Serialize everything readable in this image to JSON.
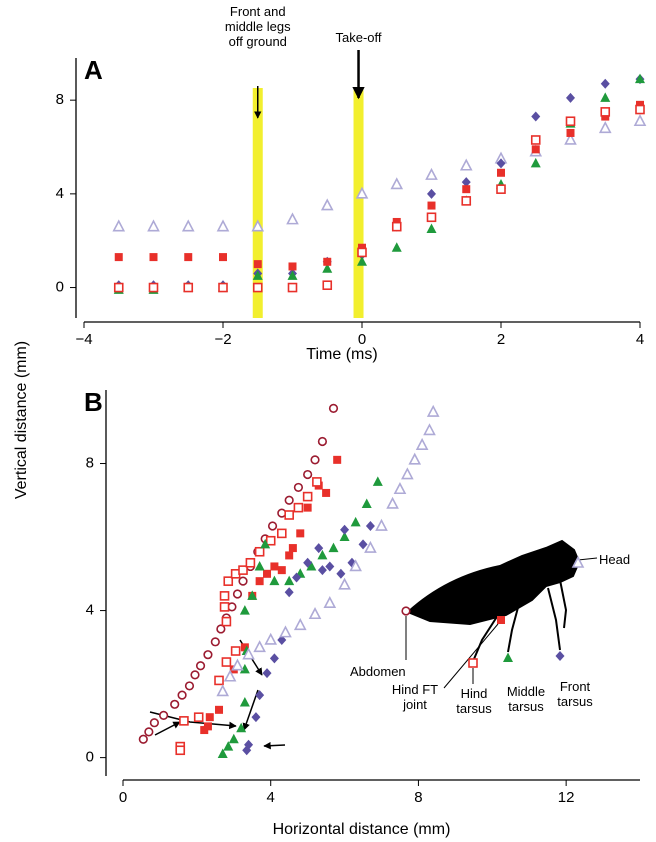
{
  "chart_data": [
    {
      "type": "scatter",
      "panel": "A",
      "xlabel": "Time (ms)",
      "ylabel": "Vertical distance (mm)",
      "xlim": [
        -4,
        4
      ],
      "ylim": [
        -1.3,
        9.8
      ],
      "xticks": [
        {
          "value": -4,
          "label": "−4"
        },
        {
          "value": -2,
          "label": "−2"
        },
        0,
        2,
        4
      ],
      "yticks": [
        0,
        4,
        8
      ],
      "annotations": [
        {
          "x": -1.5,
          "label": "Front and middle legs off ground"
        },
        {
          "x": -0.05,
          "label": "Take-off"
        }
      ],
      "band_color": "#f2ef2e",
      "x": [
        -3.5,
        -3,
        -2.5,
        -2,
        -1.5,
        -1,
        -0.5,
        0,
        0.5,
        1,
        1.5,
        2,
        2.5,
        3,
        3.5,
        4
      ],
      "series": [
        {
          "marker": "triangle-open",
          "color": "#aeaad6",
          "values": [
            2.6,
            2.6,
            2.6,
            2.6,
            2.6,
            2.9,
            3.5,
            4.0,
            4.4,
            4.8,
            5.2,
            5.5,
            5.8,
            6.3,
            6.8,
            7.1
          ]
        },
        {
          "marker": "diamond",
          "color": "#5a4fa2",
          "values": [
            0.1,
            0.1,
            0.1,
            0.1,
            0.6,
            0.6,
            1.1,
            1.4,
            2.6,
            4.0,
            4.5,
            5.3,
            7.3,
            8.1,
            8.7,
            8.9
          ]
        },
        {
          "marker": "triangle",
          "color": "#1f9a3c",
          "values": [
            -0.1,
            -0.1,
            0,
            0,
            0.5,
            0.5,
            0.8,
            1.1,
            1.7,
            2.5,
            3.7,
            4.4,
            5.3,
            7.0,
            8.1,
            8.9
          ]
        },
        {
          "marker": "square",
          "color": "#e8302a",
          "values": [
            1.3,
            1.3,
            1.3,
            1.3,
            1.0,
            0.9,
            1.1,
            1.7,
            2.8,
            3.5,
            4.2,
            4.9,
            5.9,
            6.6,
            7.3,
            7.8
          ]
        },
        {
          "marker": "square-open",
          "color": "#e8302a",
          "values": [
            0,
            0,
            0,
            0,
            0,
            0,
            0.1,
            1.5,
            2.6,
            3.0,
            3.7,
            4.2,
            6.3,
            7.1,
            7.5,
            7.6
          ]
        }
      ]
    },
    {
      "type": "scatter",
      "panel": "B",
      "xlabel": "Horizontal distance (mm)",
      "xlim": [
        0,
        14
      ],
      "ylim": [
        -0.5,
        10
      ],
      "xticks": [
        0,
        4,
        8,
        12
      ],
      "yticks": [
        0,
        4,
        8
      ],
      "series": [
        {
          "name": "Abdomen",
          "marker": "circle-open",
          "color": "#9b1b30",
          "x": [
            0.55,
            0.7,
            0.85,
            1.1,
            1.4,
            1.6,
            1.8,
            1.95,
            2.1,
            2.3,
            2.5,
            2.65,
            2.8,
            2.95,
            3.1,
            3.25,
            3.45,
            3.65,
            3.85,
            4.05,
            4.3,
            4.5,
            4.75,
            5.0,
            5.2,
            5.4,
            5.7
          ],
          "values": [
            0.5,
            0.7,
            0.95,
            1.15,
            1.45,
            1.7,
            1.95,
            2.25,
            2.5,
            2.8,
            3.15,
            3.5,
            3.8,
            4.1,
            4.45,
            4.8,
            5.2,
            5.6,
            5.95,
            6.3,
            6.65,
            7.0,
            7.35,
            7.7,
            8.1,
            8.6,
            9.5
          ]
        },
        {
          "name": "Hind FT joint",
          "marker": "square",
          "color": "#e8302a",
          "x": [
            2.2,
            2.3,
            2.35,
            2.6,
            3.0,
            3.3,
            3.5,
            3.7,
            3.9,
            4.1,
            4.3,
            4.5,
            4.6,
            4.8,
            5.0,
            5.3,
            5.5,
            5.8
          ],
          "values": [
            0.75,
            0.85,
            1.1,
            1.3,
            2.4,
            3.0,
            4.4,
            4.8,
            5.0,
            5.2,
            5.1,
            5.5,
            5.7,
            6.1,
            6.8,
            7.4,
            7.2,
            8.1
          ]
        },
        {
          "name": "Hind tarsus",
          "marker": "square-open",
          "color": "#e8302a",
          "x": [
            1.55,
            1.55,
            1.65,
            2.05,
            2.6,
            2.8,
            3.05,
            2.8,
            2.75,
            2.75,
            2.85,
            3.05,
            3.25,
            3.45,
            3.7,
            4.0,
            4.3,
            4.5,
            4.75,
            5.0,
            5.25
          ],
          "values": [
            0.3,
            0.2,
            1.0,
            1.1,
            2.1,
            2.6,
            2.9,
            3.7,
            4.1,
            4.4,
            4.8,
            5.0,
            5.1,
            5.3,
            5.6,
            5.9,
            6.1,
            6.6,
            6.8,
            7.1,
            7.5
          ]
        },
        {
          "name": "Middle tarsus",
          "marker": "triangle",
          "color": "#1f9a3c",
          "x": [
            2.7,
            2.85,
            3.0,
            3.2,
            3.3,
            3.3,
            3.35,
            3.3,
            3.5,
            3.7,
            3.85,
            4.1,
            4.5,
            4.8,
            5.1,
            5.4,
            5.7,
            6.0,
            6.3,
            6.6,
            6.9
          ],
          "values": [
            0.1,
            0.3,
            0.5,
            0.8,
            1.5,
            2.4,
            2.9,
            4.0,
            4.4,
            5.2,
            5.8,
            4.8,
            4.8,
            5.0,
            5.2,
            5.5,
            5.7,
            6.0,
            6.4,
            6.9,
            7.5
          ]
        },
        {
          "name": "Front tarsus",
          "marker": "diamond",
          "color": "#5a4fa2",
          "x": [
            3.35,
            3.4,
            3.6,
            3.7,
            3.9,
            4.1,
            4.3,
            4.5,
            4.7,
            5.0,
            5.3,
            5.6,
            5.9,
            6.2,
            6.5,
            6.7,
            6.0,
            5.4
          ],
          "values": [
            0.2,
            0.35,
            1.1,
            1.7,
            2.3,
            2.7,
            3.2,
            4.5,
            4.9,
            5.3,
            5.7,
            5.2,
            5.0,
            5.3,
            5.8,
            6.3,
            6.2,
            5.1
          ]
        },
        {
          "name": "Head",
          "marker": "triangle-open",
          "color": "#aeaad6",
          "x": [
            2.7,
            2.9,
            3.1,
            3.4,
            3.7,
            4.0,
            4.4,
            4.8,
            5.2,
            5.6,
            6.0,
            6.3,
            6.7,
            7.0,
            7.3,
            7.5,
            7.7,
            7.9,
            8.1,
            8.3,
            8.4
          ],
          "values": [
            1.8,
            2.2,
            2.5,
            2.8,
            3.0,
            3.2,
            3.4,
            3.6,
            3.9,
            4.2,
            4.7,
            5.2,
            5.7,
            6.3,
            6.9,
            7.3,
            7.7,
            8.1,
            8.5,
            8.9,
            9.4
          ]
        }
      ]
    }
  ]
}
